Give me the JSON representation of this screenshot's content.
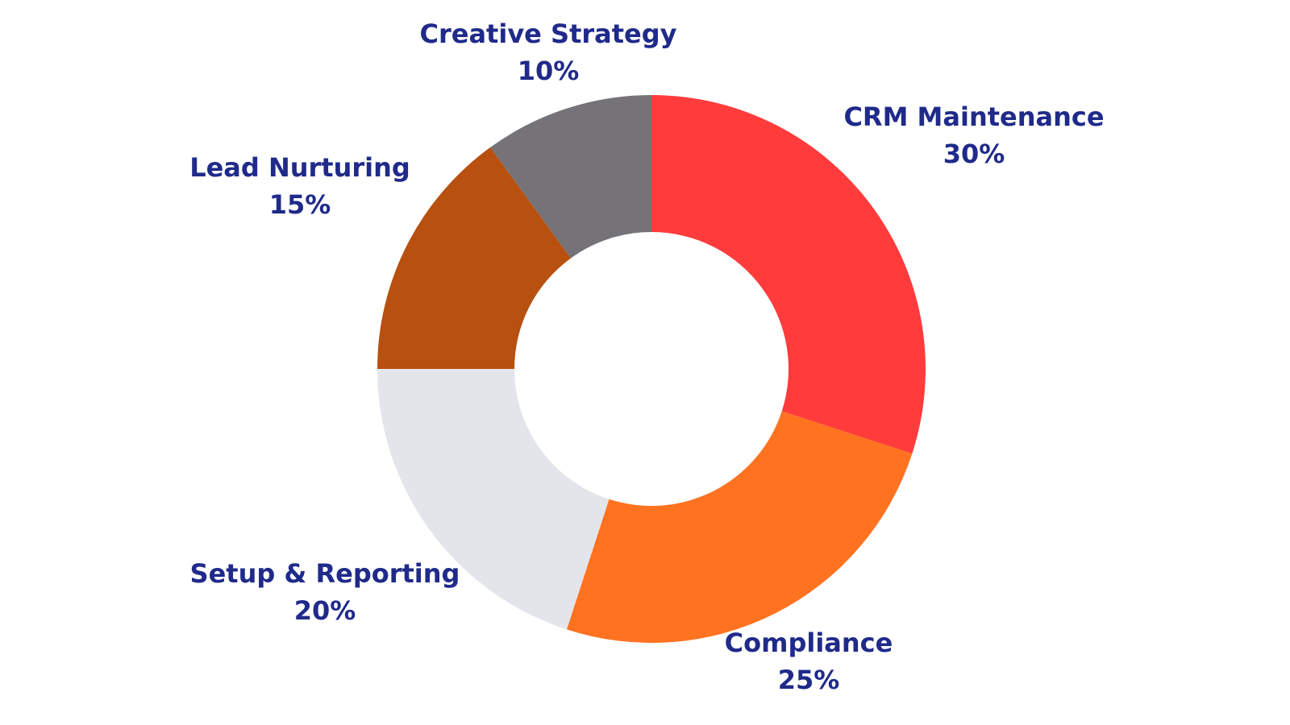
{
  "chart_data": {
    "type": "pie",
    "donut": true,
    "title": "",
    "label_color": "#1f2a8a",
    "start_angle": "12 o'clock",
    "direction": "clockwise",
    "slices": [
      {
        "label": "CRM Maintenance",
        "value": 30,
        "value_label": "30%",
        "color": "#ff3b3b"
      },
      {
        "label": "Compliance",
        "value": 25,
        "value_label": "25%",
        "color": "#ff7220"
      },
      {
        "label": "Setup & Reporting",
        "value": 20,
        "value_label": "20%",
        "color": "#e4e5eb"
      },
      {
        "label": "Lead Nurturing",
        "value": 15,
        "value_label": "15%",
        "color": "#b85010"
      },
      {
        "label": "Creative Strategy",
        "value": 10,
        "value_label": "10%",
        "color": "#757377"
      }
    ]
  }
}
